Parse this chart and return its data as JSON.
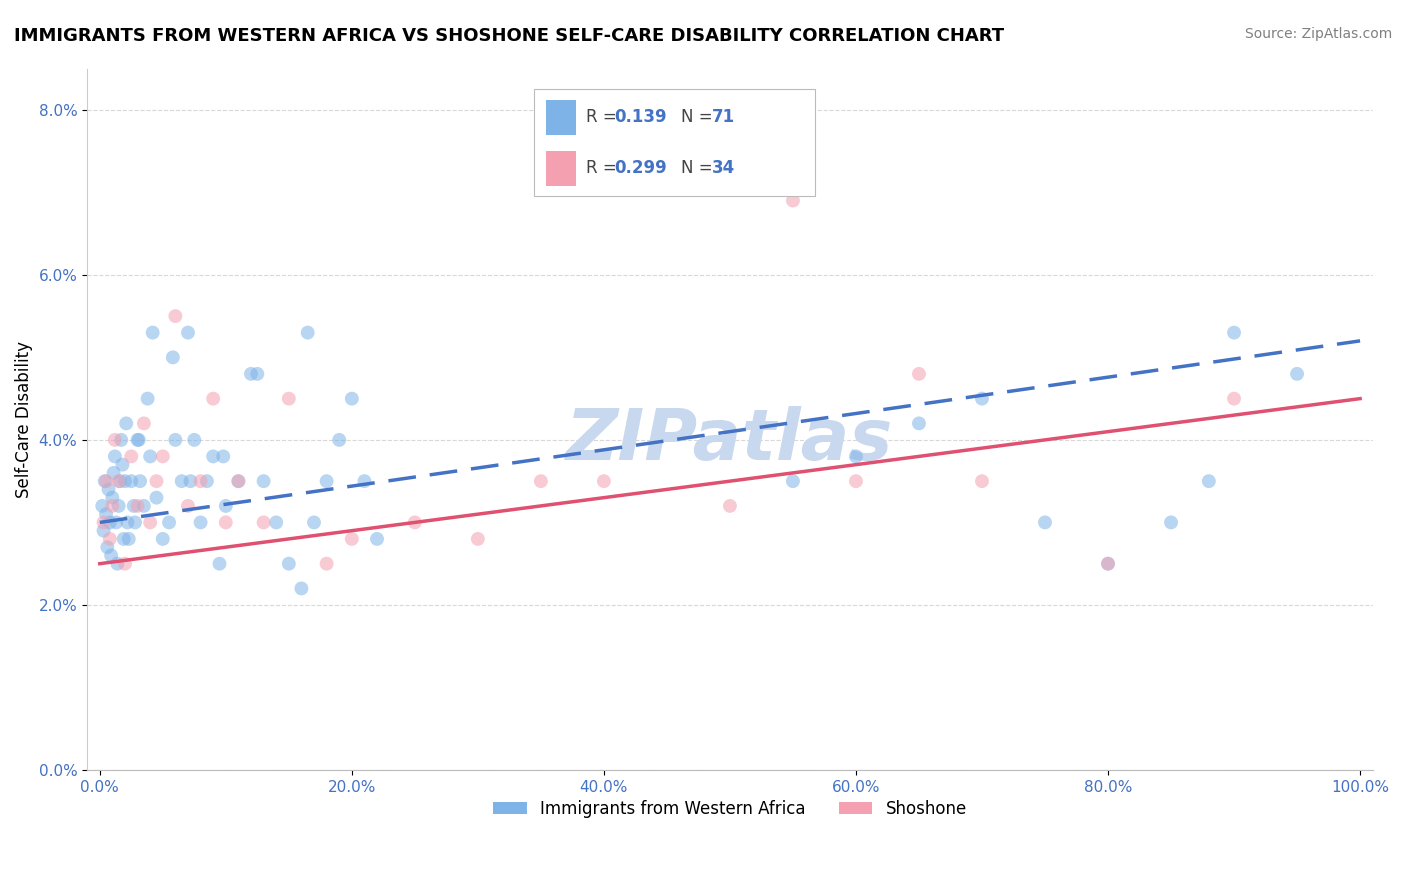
{
  "title": "IMMIGRANTS FROM WESTERN AFRICA VS SHOSHONE SELF-CARE DISABILITY CORRELATION CHART",
  "source": "Source: ZipAtlas.com",
  "xlabel": "",
  "ylabel": "Self-Care Disability",
  "watermark": "ZIPatlas",
  "series1_label": "Immigrants from Western Africa",
  "series1_R": 0.139,
  "series1_N": 71,
  "series1_color": "#7eb3e8",
  "series1_trend_color": "#4472c4",
  "series2_label": "Shoshone",
  "series2_R": 0.299,
  "series2_N": 34,
  "series2_color": "#f4a0b0",
  "series2_trend_color": "#e05070",
  "background_color": "#ffffff",
  "xlim": [
    -1,
    101
  ],
  "ylim": [
    0.0,
    8.5
  ],
  "yticks": [
    0,
    2,
    4,
    6,
    8
  ],
  "xticks": [
    0,
    20,
    40,
    60,
    80,
    100
  ],
  "series1_x": [
    0.2,
    0.3,
    0.4,
    0.5,
    0.6,
    0.7,
    0.8,
    0.9,
    1.0,
    1.1,
    1.2,
    1.3,
    1.4,
    1.5,
    1.6,
    1.7,
    1.8,
    1.9,
    2.0,
    2.1,
    2.2,
    2.3,
    2.5,
    2.7,
    3.0,
    3.2,
    3.5,
    3.8,
    4.0,
    4.5,
    5.0,
    5.5,
    6.0,
    6.5,
    7.0,
    7.5,
    8.0,
    8.5,
    9.0,
    9.5,
    10.0,
    11.0,
    12.0,
    13.0,
    14.0,
    15.0,
    16.0,
    17.0,
    18.0,
    19.0,
    20.0,
    21.0,
    22.0,
    16.5,
    12.5,
    9.8,
    7.2,
    5.8,
    4.2,
    3.1,
    2.8,
    55.0,
    60.0,
    65.0,
    70.0,
    75.0,
    80.0,
    85.0,
    88.0,
    90.0,
    95.0
  ],
  "series1_y": [
    3.2,
    2.9,
    3.5,
    3.1,
    2.7,
    3.4,
    3.0,
    2.6,
    3.3,
    3.6,
    3.8,
    3.0,
    2.5,
    3.2,
    3.5,
    4.0,
    3.7,
    2.8,
    3.5,
    4.2,
    3.0,
    2.8,
    3.5,
    3.2,
    4.0,
    3.5,
    3.2,
    4.5,
    3.8,
    3.3,
    2.8,
    3.0,
    4.0,
    3.5,
    5.3,
    4.0,
    3.0,
    3.5,
    3.8,
    2.5,
    3.2,
    3.5,
    4.8,
    3.5,
    3.0,
    2.5,
    2.2,
    3.0,
    3.5,
    4.0,
    4.5,
    3.5,
    2.8,
    5.3,
    4.8,
    3.8,
    3.5,
    5.0,
    5.3,
    4.0,
    3.0,
    3.5,
    3.8,
    4.2,
    4.5,
    3.0,
    2.5,
    3.0,
    3.5,
    5.3,
    4.8
  ],
  "series2_x": [
    0.3,
    0.5,
    0.8,
    1.0,
    1.2,
    1.5,
    2.0,
    2.5,
    3.0,
    3.5,
    4.0,
    4.5,
    5.0,
    6.0,
    7.0,
    8.0,
    9.0,
    10.0,
    11.0,
    13.0,
    15.0,
    18.0,
    20.0,
    25.0,
    30.0,
    35.0,
    40.0,
    50.0,
    55.0,
    60.0,
    65.0,
    70.0,
    80.0,
    90.0
  ],
  "series2_y": [
    3.0,
    3.5,
    2.8,
    3.2,
    4.0,
    3.5,
    2.5,
    3.8,
    3.2,
    4.2,
    3.0,
    3.5,
    3.8,
    5.5,
    3.2,
    3.5,
    4.5,
    3.0,
    3.5,
    3.0,
    4.5,
    2.5,
    2.8,
    3.0,
    2.8,
    3.5,
    3.5,
    3.2,
    6.9,
    3.5,
    4.8,
    3.5,
    2.5,
    4.5
  ],
  "title_fontsize": 13,
  "source_fontsize": 10,
  "axis_label_fontsize": 12,
  "tick_fontsize": 11,
  "legend_fontsize": 12,
  "watermark_fontsize": 52,
  "watermark_color": "#c8d8ee",
  "marker_size": 10,
  "marker_alpha": 0.55,
  "grid_color": "#d8d8d8",
  "grid_style": "--",
  "trend_linewidth": 2.5
}
